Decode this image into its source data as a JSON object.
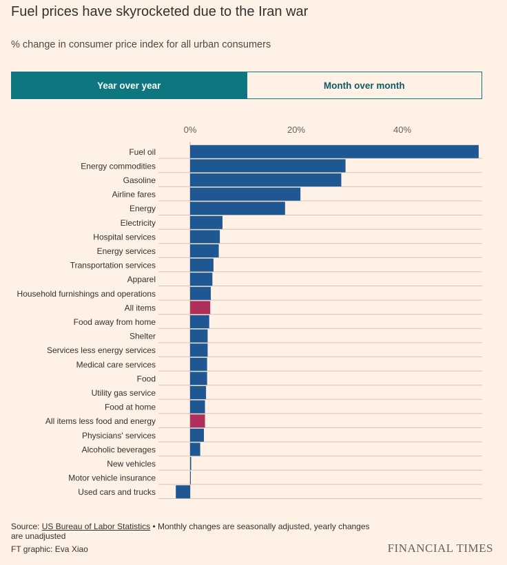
{
  "header": {
    "title": "Fuel prices have skyrocketed due to the Iran war",
    "subtitle": "% change in consumer price index for all urban consumers"
  },
  "toggle": {
    "active_label": "Year over year",
    "inactive_label": "Month over month"
  },
  "footer": {
    "source_prefix": "Source: ",
    "source_link": "US Bureau of Labor Statistics",
    "source_note": " • Monthly changes are seasonally adjusted, yearly changes are unadjusted",
    "credit": "FT graphic: Eva Xiao",
    "logo": "FINANCIAL TIMES"
  },
  "colors": {
    "bar": "#1f5793",
    "highlight": "#b0305c",
    "accent": "#0d7680"
  },
  "chart_data": {
    "type": "bar",
    "orientation": "horizontal",
    "title": "Fuel prices have skyrocketed due to the Iran war",
    "subtitle": "% change in consumer price index for all urban consumers",
    "xlim": [
      -3,
      55
    ],
    "x_ticks": [
      0,
      20,
      40
    ],
    "x_tick_labels": [
      "0%",
      "20%",
      "40%"
    ],
    "grid": true,
    "highlighted": [
      "All items",
      "All items less food and energy"
    ],
    "categories": [
      "Fuel oil",
      "Energy commodities",
      "Gasoline",
      "Airline fares",
      "Energy",
      "Electricity",
      "Hospital services",
      "Energy services",
      "Transportation services",
      "Apparel",
      "Household furnishings and operations",
      "All items",
      "Food away from home",
      "Shelter",
      "Services less energy services",
      "Medical care services",
      "Food",
      "Utility gas service",
      "Food at home",
      "All items less food and energy",
      "Physicians' services",
      "Alcoholic beverages",
      "New vehicles",
      "Motor vehicle insurance",
      "Used cars and trucks"
    ],
    "values": [
      54.4,
      29.3,
      28.5,
      20.8,
      17.9,
      6.1,
      5.6,
      5.4,
      4.4,
      4.2,
      3.9,
      3.8,
      3.6,
      3.3,
      3.3,
      3.2,
      3.2,
      3.0,
      2.8,
      2.8,
      2.6,
      1.9,
      0.2,
      0.1,
      -2.7
    ]
  }
}
